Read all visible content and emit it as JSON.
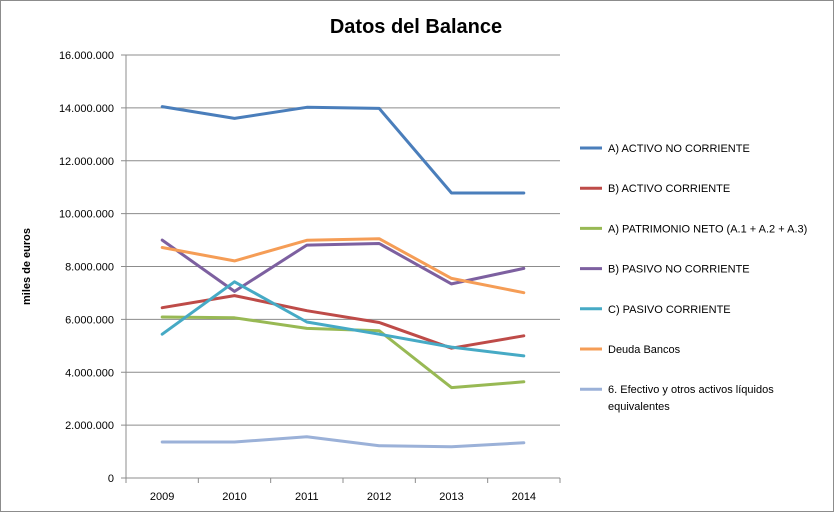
{
  "chart_data": {
    "type": "line",
    "title": "Datos del Balance",
    "xlabel": "",
    "ylabel": "miles de euros",
    "x": [
      "2009",
      "2010",
      "2011",
      "2012",
      "2013",
      "2014"
    ],
    "ylim": [
      0,
      16000000
    ],
    "yticks": [
      0,
      2000000,
      4000000,
      6000000,
      8000000,
      10000000,
      12000000,
      14000000,
      16000000
    ],
    "ytick_labels": [
      "0",
      "2.000.000",
      "4.000.000",
      "6.000.000",
      "8.000.000",
      "10.000.000",
      "12.000.000",
      "14.000.000",
      "16.000.000"
    ],
    "grid": true,
    "legend_position": "right",
    "series": [
      {
        "name": "A) ACTIVO NO CORRIENTE",
        "color": "#4a7ebb",
        "values": [
          14050000,
          13600000,
          14020000,
          13980000,
          10780000,
          10780000
        ]
      },
      {
        "name": "B) ACTIVO CORRIENTE",
        "color": "#be4b48",
        "values": [
          6440000,
          6900000,
          6330000,
          5880000,
          4910000,
          5380000
        ]
      },
      {
        "name": "A) PATRIMONIO NETO (A.1 + A.2 + A.3)",
        "color": "#98b954",
        "values": [
          6090000,
          6060000,
          5660000,
          5570000,
          3420000,
          3640000
        ]
      },
      {
        "name": "B) PASIVO NO CORRIENTE",
        "color": "#7d60a0",
        "values": [
          9000000,
          7060000,
          8810000,
          8870000,
          7340000,
          7930000
        ]
      },
      {
        "name": "C) PASIVO CORRIENTE",
        "color": "#46aac5",
        "values": [
          5440000,
          7420000,
          5900000,
          5440000,
          4950000,
          4620000
        ]
      },
      {
        "name": "Deuda Bancos",
        "color": "#f59d56",
        "values": [
          8720000,
          8210000,
          8990000,
          9050000,
          7550000,
          7010000
        ]
      },
      {
        "name": "6. Efectivo y otros activos líquidos equivalentes",
        "legend_lines": [
          "6. Efectivo y otros activos líquidos",
          "equivalentes"
        ],
        "color": "#9bb1d8",
        "values": [
          1360000,
          1360000,
          1560000,
          1220000,
          1180000,
          1330000
        ]
      }
    ]
  }
}
